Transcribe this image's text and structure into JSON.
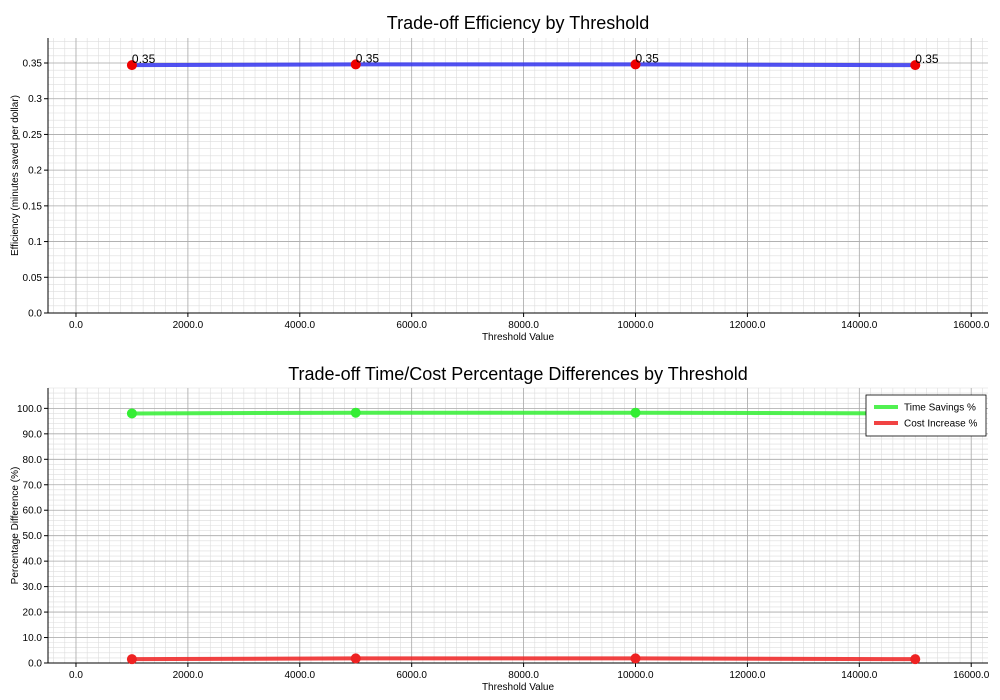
{
  "chart_data": [
    {
      "type": "line",
      "title": "Trade-off Efficiency by Threshold",
      "xlabel": "Threshold Value",
      "ylabel": "Efficiency (minutes saved per dollar)",
      "x": [
        1000,
        5000,
        10000,
        15000
      ],
      "xlim": [
        -500,
        16300
      ],
      "ylim": [
        0,
        0.385
      ],
      "xticks": [
        "0.0",
        "2000.0",
        "4000.0",
        "6000.0",
        "8000.0",
        "10000.0",
        "12000.0",
        "14000.0",
        "16000.0"
      ],
      "yticks": [
        "0.0",
        "0.05",
        "0.1",
        "0.15",
        "0.2",
        "0.25",
        "0.3",
        "0.35"
      ],
      "grid": true,
      "series": [
        {
          "values": [
            0.347,
            0.348,
            0.348,
            0.347
          ],
          "line_color": "#3333ee",
          "marker_color": "#ee0000",
          "labels": [
            "0.35",
            "0.35",
            "0.35",
            "0.35"
          ]
        }
      ]
    },
    {
      "type": "line",
      "title": "Trade-off Time/Cost Percentage Differences by Threshold",
      "xlabel": "Threshold Value",
      "ylabel": "Percentage Difference (%)",
      "x": [
        1000,
        5000,
        10000,
        15000
      ],
      "xlim": [
        -500,
        16300
      ],
      "ylim": [
        0,
        108
      ],
      "xticks": [
        "0.0",
        "2000.0",
        "4000.0",
        "6000.0",
        "8000.0",
        "10000.0",
        "12000.0",
        "14000.0",
        "16000.0"
      ],
      "yticks": [
        "0.0",
        "10.0",
        "20.0",
        "30.0",
        "40.0",
        "50.0",
        "60.0",
        "70.0",
        "80.0",
        "90.0",
        "100.0"
      ],
      "grid": true,
      "legend": "top-right",
      "series": [
        {
          "name": "Time Savings %",
          "values": [
            98.0,
            98.3,
            98.3,
            98.0
          ],
          "color": "#33ee33"
        },
        {
          "name": "Cost Increase %",
          "values": [
            1.5,
            1.8,
            1.8,
            1.5
          ],
          "color": "#ee2222"
        }
      ]
    }
  ]
}
